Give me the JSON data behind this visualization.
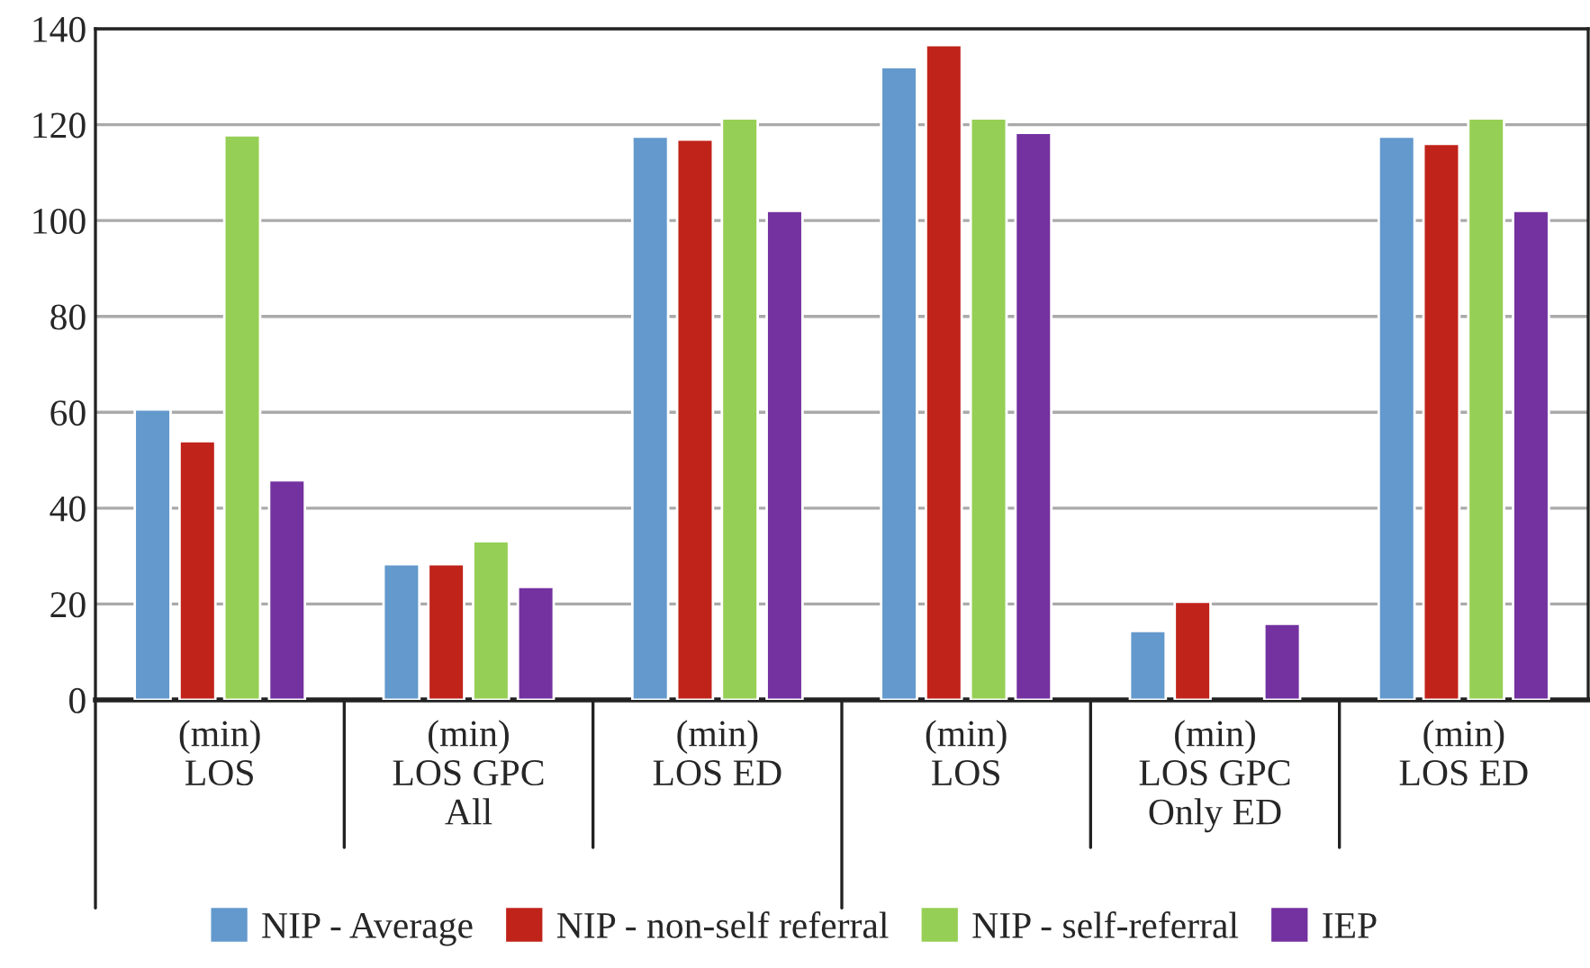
{
  "chart_data": {
    "type": "bar",
    "categories": [
      "(min)\nLOS",
      "(min)\nLOS GPC\nAll",
      "(min)\nLOS ED",
      "(min)\nLOS",
      "(min)\nLOS GPC\nOnly ED",
      "(min)\nLOS ED"
    ],
    "series": [
      {
        "name": "NIP - Average",
        "color": "#6399cc",
        "values": [
          60.6,
          28.3,
          117.5,
          132,
          14.4,
          117.5
        ]
      },
      {
        "name": "NIP - non-self referral",
        "color": "#c0231a",
        "values": [
          54,
          28.3,
          116.9,
          136.6,
          20.5,
          116
        ]
      },
      {
        "name": "NIP - self-referral",
        "color": "#96cf55",
        "values": [
          117.8,
          33.1,
          121.3,
          121.3,
          null,
          121.3
        ]
      },
      {
        "name": "IEP",
        "color": "#7431a0",
        "values": [
          45.8,
          23.6,
          102,
          118.3,
          15.9,
          102
        ]
      }
    ],
    "ylim": [
      0,
      140
    ],
    "yticks": [
      0,
      20,
      40,
      60,
      80,
      100,
      120,
      140
    ],
    "grid": "y",
    "legend": "bottom"
  }
}
